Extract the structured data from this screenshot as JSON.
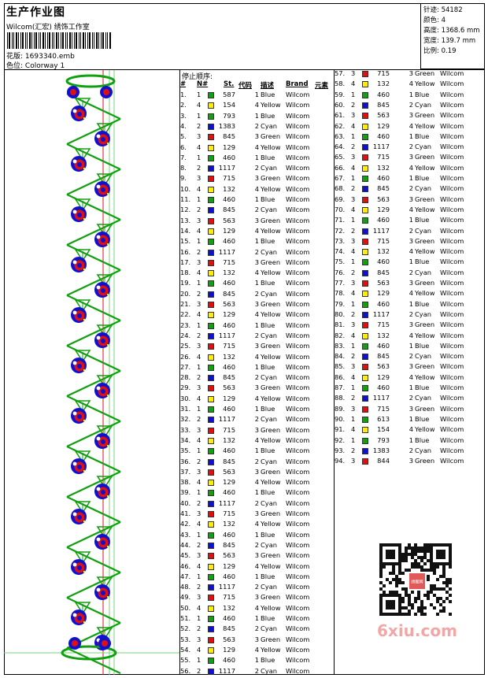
{
  "header": {
    "title": "生产作业图",
    "company": "Wilcom(汇宏) 绣饰工作室",
    "file_label": "花版:",
    "file_value": "1693340.emb",
    "colorway_label": "色位:",
    "colorway_value": "Colorway 1"
  },
  "stats": [
    {
      "label": "针迹:",
      "value": "54182"
    },
    {
      "label": "颜色:",
      "value": "4"
    },
    {
      "label": "高度:",
      "value": "1368.6 mm"
    },
    {
      "label": "宽度:",
      "value": "139.7 mm"
    },
    {
      "label": "比例:",
      "value": "0.19"
    }
  ],
  "table": {
    "stop_title": "停止顺序:",
    "col_num": "#",
    "col_n": "N#",
    "col_st": "St.",
    "col_code": "代码",
    "col_desc": "描述",
    "col_brand": "Brand",
    "col_elem": "元素"
  },
  "colors": {
    "Green": "#10a010",
    "Yellow": "#ffee00",
    "Blue": "#1010d0",
    "Cyan": "#1010d0",
    "Red": "#e01010"
  },
  "stops": [
    [
      "1.",
      "1",
      "587",
      "1",
      "Blue",
      "Wilcom",
      "Green"
    ],
    [
      "2.",
      "4",
      "154",
      "4",
      "Yellow",
      "Wilcom",
      "Yellow"
    ],
    [
      "3.",
      "1",
      "793",
      "1",
      "Blue",
      "Wilcom",
      "Green"
    ],
    [
      "4.",
      "2",
      "1383",
      "2",
      "Cyan",
      "Wilcom",
      "Blue"
    ],
    [
      "5.",
      "3",
      "845",
      "3",
      "Green",
      "Wilcom",
      "Red"
    ],
    [
      "6.",
      "4",
      "129",
      "4",
      "Yellow",
      "Wilcom",
      "Yellow"
    ],
    [
      "7.",
      "1",
      "460",
      "1",
      "Blue",
      "Wilcom",
      "Green"
    ],
    [
      "8.",
      "2",
      "1117",
      "2",
      "Cyan",
      "Wilcom",
      "Blue"
    ],
    [
      "9.",
      "3",
      "715",
      "3",
      "Green",
      "Wilcom",
      "Red"
    ],
    [
      "10.",
      "4",
      "132",
      "4",
      "Yellow",
      "Wilcom",
      "Yellow"
    ],
    [
      "11.",
      "1",
      "460",
      "1",
      "Blue",
      "Wilcom",
      "Green"
    ],
    [
      "12.",
      "2",
      "845",
      "2",
      "Cyan",
      "Wilcom",
      "Blue"
    ],
    [
      "13.",
      "3",
      "563",
      "3",
      "Green",
      "Wilcom",
      "Red"
    ],
    [
      "14.",
      "4",
      "129",
      "4",
      "Yellow",
      "Wilcom",
      "Yellow"
    ],
    [
      "15.",
      "1",
      "460",
      "1",
      "Blue",
      "Wilcom",
      "Green"
    ],
    [
      "16.",
      "2",
      "1117",
      "2",
      "Cyan",
      "Wilcom",
      "Blue"
    ],
    [
      "17.",
      "3",
      "715",
      "3",
      "Green",
      "Wilcom",
      "Red"
    ],
    [
      "18.",
      "4",
      "132",
      "4",
      "Yellow",
      "Wilcom",
      "Yellow"
    ],
    [
      "19.",
      "1",
      "460",
      "1",
      "Blue",
      "Wilcom",
      "Green"
    ],
    [
      "20.",
      "2",
      "845",
      "2",
      "Cyan",
      "Wilcom",
      "Blue"
    ],
    [
      "21.",
      "3",
      "563",
      "3",
      "Green",
      "Wilcom",
      "Red"
    ],
    [
      "22.",
      "4",
      "129",
      "4",
      "Yellow",
      "Wilcom",
      "Yellow"
    ],
    [
      "23.",
      "1",
      "460",
      "1",
      "Blue",
      "Wilcom",
      "Green"
    ],
    [
      "24.",
      "2",
      "1117",
      "2",
      "Cyan",
      "Wilcom",
      "Blue"
    ],
    [
      "25.",
      "3",
      "715",
      "3",
      "Green",
      "Wilcom",
      "Red"
    ],
    [
      "26.",
      "4",
      "132",
      "4",
      "Yellow",
      "Wilcom",
      "Yellow"
    ],
    [
      "27.",
      "1",
      "460",
      "1",
      "Blue",
      "Wilcom",
      "Green"
    ],
    [
      "28.",
      "2",
      "845",
      "2",
      "Cyan",
      "Wilcom",
      "Blue"
    ],
    [
      "29.",
      "3",
      "563",
      "3",
      "Green",
      "Wilcom",
      "Red"
    ],
    [
      "30.",
      "4",
      "129",
      "4",
      "Yellow",
      "Wilcom",
      "Yellow"
    ],
    [
      "31.",
      "1",
      "460",
      "1",
      "Blue",
      "Wilcom",
      "Green"
    ],
    [
      "32.",
      "2",
      "1117",
      "2",
      "Cyan",
      "Wilcom",
      "Blue"
    ],
    [
      "33.",
      "3",
      "715",
      "3",
      "Green",
      "Wilcom",
      "Red"
    ],
    [
      "34.",
      "4",
      "132",
      "4",
      "Yellow",
      "Wilcom",
      "Yellow"
    ],
    [
      "35.",
      "1",
      "460",
      "1",
      "Blue",
      "Wilcom",
      "Green"
    ],
    [
      "36.",
      "2",
      "845",
      "2",
      "Cyan",
      "Wilcom",
      "Blue"
    ],
    [
      "37.",
      "3",
      "563",
      "3",
      "Green",
      "Wilcom",
      "Red"
    ],
    [
      "38.",
      "4",
      "129",
      "4",
      "Yellow",
      "Wilcom",
      "Yellow"
    ],
    [
      "39.",
      "1",
      "460",
      "1",
      "Blue",
      "Wilcom",
      "Green"
    ],
    [
      "40.",
      "2",
      "1117",
      "2",
      "Cyan",
      "Wilcom",
      "Blue"
    ],
    [
      "41.",
      "3",
      "715",
      "3",
      "Green",
      "Wilcom",
      "Red"
    ],
    [
      "42.",
      "4",
      "132",
      "4",
      "Yellow",
      "Wilcom",
      "Yellow"
    ],
    [
      "43.",
      "1",
      "460",
      "1",
      "Blue",
      "Wilcom",
      "Green"
    ],
    [
      "44.",
      "2",
      "845",
      "2",
      "Cyan",
      "Wilcom",
      "Blue"
    ],
    [
      "45.",
      "3",
      "563",
      "3",
      "Green",
      "Wilcom",
      "Red"
    ],
    [
      "46.",
      "4",
      "129",
      "4",
      "Yellow",
      "Wilcom",
      "Yellow"
    ],
    [
      "47.",
      "1",
      "460",
      "1",
      "Blue",
      "Wilcom",
      "Green"
    ],
    [
      "48.",
      "2",
      "1117",
      "2",
      "Cyan",
      "Wilcom",
      "Blue"
    ],
    [
      "49.",
      "3",
      "715",
      "3",
      "Green",
      "Wilcom",
      "Red"
    ],
    [
      "50.",
      "4",
      "132",
      "4",
      "Yellow",
      "Wilcom",
      "Yellow"
    ],
    [
      "51.",
      "1",
      "460",
      "1",
      "Blue",
      "Wilcom",
      "Green"
    ],
    [
      "52.",
      "2",
      "845",
      "2",
      "Cyan",
      "Wilcom",
      "Blue"
    ],
    [
      "53.",
      "3",
      "563",
      "3",
      "Green",
      "Wilcom",
      "Red"
    ],
    [
      "54.",
      "4",
      "129",
      "4",
      "Yellow",
      "Wilcom",
      "Yellow"
    ],
    [
      "55.",
      "1",
      "460",
      "1",
      "Blue",
      "Wilcom",
      "Green"
    ],
    [
      "56.",
      "2",
      "1117",
      "2",
      "Cyan",
      "Wilcom",
      "Blue"
    ],
    [
      "57.",
      "3",
      "715",
      "3",
      "Green",
      "Wilcom",
      "Red"
    ],
    [
      "58.",
      "4",
      "132",
      "4",
      "Yellow",
      "Wilcom",
      "Yellow"
    ],
    [
      "59.",
      "1",
      "460",
      "1",
      "Blue",
      "Wilcom",
      "Green"
    ],
    [
      "60.",
      "2",
      "845",
      "2",
      "Cyan",
      "Wilcom",
      "Blue"
    ],
    [
      "61.",
      "3",
      "563",
      "3",
      "Green",
      "Wilcom",
      "Red"
    ],
    [
      "62.",
      "4",
      "129",
      "4",
      "Yellow",
      "Wilcom",
      "Yellow"
    ],
    [
      "63.",
      "1",
      "460",
      "1",
      "Blue",
      "Wilcom",
      "Green"
    ],
    [
      "64.",
      "2",
      "1117",
      "2",
      "Cyan",
      "Wilcom",
      "Blue"
    ],
    [
      "65.",
      "3",
      "715",
      "3",
      "Green",
      "Wilcom",
      "Red"
    ],
    [
      "66.",
      "4",
      "132",
      "4",
      "Yellow",
      "Wilcom",
      "Yellow"
    ],
    [
      "67.",
      "1",
      "460",
      "1",
      "Blue",
      "Wilcom",
      "Green"
    ],
    [
      "68.",
      "2",
      "845",
      "2",
      "Cyan",
      "Wilcom",
      "Blue"
    ],
    [
      "69.",
      "3",
      "563",
      "3",
      "Green",
      "Wilcom",
      "Red"
    ],
    [
      "70.",
      "4",
      "129",
      "4",
      "Yellow",
      "Wilcom",
      "Yellow"
    ],
    [
      "71.",
      "1",
      "460",
      "1",
      "Blue",
      "Wilcom",
      "Green"
    ],
    [
      "72.",
      "2",
      "1117",
      "2",
      "Cyan",
      "Wilcom",
      "Blue"
    ],
    [
      "73.",
      "3",
      "715",
      "3",
      "Green",
      "Wilcom",
      "Red"
    ],
    [
      "74.",
      "4",
      "132",
      "4",
      "Yellow",
      "Wilcom",
      "Yellow"
    ],
    [
      "75.",
      "1",
      "460",
      "1",
      "Blue",
      "Wilcom",
      "Green"
    ],
    [
      "76.",
      "2",
      "845",
      "2",
      "Cyan",
      "Wilcom",
      "Blue"
    ],
    [
      "77.",
      "3",
      "563",
      "3",
      "Green",
      "Wilcom",
      "Red"
    ],
    [
      "78.",
      "4",
      "129",
      "4",
      "Yellow",
      "Wilcom",
      "Yellow"
    ],
    [
      "79.",
      "1",
      "460",
      "1",
      "Blue",
      "Wilcom",
      "Green"
    ],
    [
      "80.",
      "2",
      "1117",
      "2",
      "Cyan",
      "Wilcom",
      "Blue"
    ],
    [
      "81.",
      "3",
      "715",
      "3",
      "Green",
      "Wilcom",
      "Red"
    ],
    [
      "82.",
      "4",
      "132",
      "4",
      "Yellow",
      "Wilcom",
      "Yellow"
    ],
    [
      "83.",
      "1",
      "460",
      "1",
      "Blue",
      "Wilcom",
      "Green"
    ],
    [
      "84.",
      "2",
      "845",
      "2",
      "Cyan",
      "Wilcom",
      "Blue"
    ],
    [
      "85.",
      "3",
      "563",
      "3",
      "Green",
      "Wilcom",
      "Red"
    ],
    [
      "86.",
      "4",
      "129",
      "4",
      "Yellow",
      "Wilcom",
      "Yellow"
    ],
    [
      "87.",
      "1",
      "460",
      "1",
      "Blue",
      "Wilcom",
      "Green"
    ],
    [
      "88.",
      "2",
      "1117",
      "2",
      "Cyan",
      "Wilcom",
      "Blue"
    ],
    [
      "89.",
      "3",
      "715",
      "3",
      "Green",
      "Wilcom",
      "Red"
    ],
    [
      "90.",
      "1",
      "613",
      "1",
      "Blue",
      "Wilcom",
      "Green"
    ],
    [
      "91.",
      "4",
      "154",
      "4",
      "Yellow",
      "Wilcom",
      "Yellow"
    ],
    [
      "92.",
      "1",
      "793",
      "1",
      "Blue",
      "Wilcom",
      "Green"
    ],
    [
      "93.",
      "2",
      "1383",
      "2",
      "Cyan",
      "Wilcom",
      "Blue"
    ],
    [
      "94.",
      "3",
      "844",
      "3",
      "Green",
      "Wilcom",
      "Red"
    ]
  ],
  "watermark": {
    "site": "6xiu.com",
    "qr_logo_text": "绣图网"
  }
}
